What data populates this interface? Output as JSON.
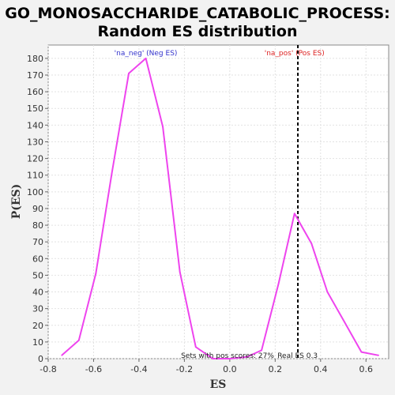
{
  "chart_data": {
    "type": "line",
    "title_line1": "GO_MONOSACCHARIDE_CATABOLIC_PROCESS:",
    "title_line2": "Random ES distribution",
    "xlabel": "ES",
    "ylabel": "P(ES)",
    "xlim": [
      -0.8,
      0.7
    ],
    "ylim": [
      0,
      188
    ],
    "x_ticks": [
      -0.8,
      -0.6,
      -0.4,
      -0.2,
      0.0,
      0.2,
      0.4,
      0.6
    ],
    "x_tick_labels": [
      "-0.8",
      "-0.6",
      "-0.4",
      "-0.2",
      "0.0",
      "0.2",
      "0.4",
      "0.6"
    ],
    "y_ticks": [
      0,
      10,
      20,
      30,
      40,
      50,
      60,
      70,
      80,
      90,
      100,
      110,
      120,
      130,
      140,
      150,
      160,
      170,
      180
    ],
    "grid": true,
    "series": [
      {
        "color": "#ee44ee",
        "x": [
          -0.74,
          -0.665,
          -0.59,
          -0.52,
          -0.445,
          -0.37,
          -0.295,
          -0.22,
          -0.15,
          -0.075,
          0.0,
          0.075,
          0.14,
          0.215,
          0.285,
          0.36,
          0.43,
          0.505,
          0.58,
          0.655
        ],
        "y": [
          2,
          11,
          51,
          111,
          171,
          180,
          139,
          52,
          7,
          0,
          0,
          1,
          5,
          45,
          87,
          69,
          40,
          22,
          4,
          2
        ]
      }
    ],
    "real_es_line": {
      "x": 0.3,
      "style": "dashed",
      "color": "#000000"
    },
    "annotations": {
      "neg_label": "'na_neg' (Neg ES)",
      "neg_color": "#3333cc",
      "pos_label": "'na_pos' (Pos ES)",
      "pos_color": "#dd2222",
      "sets_text": "Sets with pos scores: 27%",
      "real_es_text": "Real ES 0.3"
    }
  }
}
